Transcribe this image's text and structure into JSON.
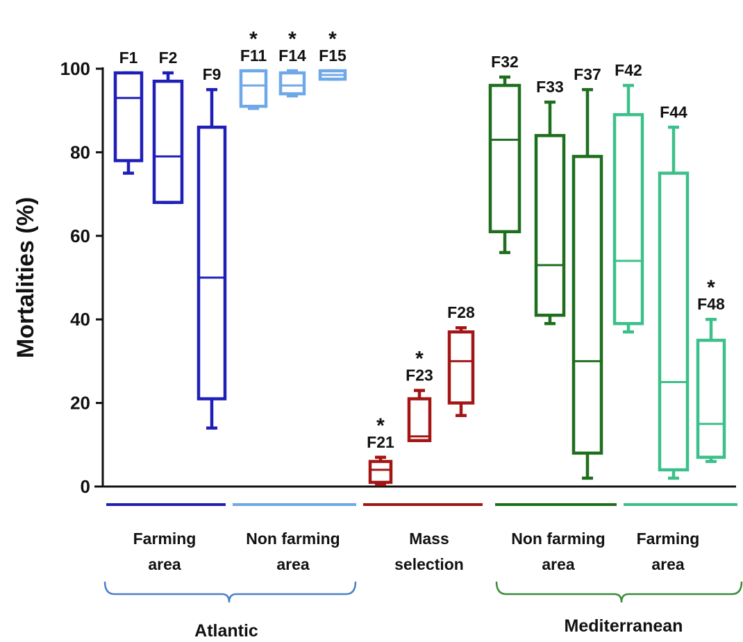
{
  "chart_data": {
    "type": "box",
    "ylabel": "Mortalities (%)",
    "ylim": [
      0,
      100
    ],
    "yticks": [
      0,
      20,
      40,
      60,
      80,
      100
    ],
    "significance_marker": "*",
    "boxes": [
      {
        "label": "F1",
        "group": "atl_farm",
        "min": 75,
        "q1": 78,
        "median": 93,
        "q3": 99,
        "max": 99,
        "significant": false
      },
      {
        "label": "F2",
        "group": "atl_farm",
        "min": 68,
        "q1": 68,
        "median": 79,
        "q3": 97,
        "max": 99,
        "significant": false
      },
      {
        "label": "F9",
        "group": "atl_farm",
        "min": 14,
        "q1": 21,
        "median": 50,
        "q3": 86,
        "max": 95,
        "significant": false
      },
      {
        "label": "F11",
        "group": "atl_nonfarm",
        "min": 90.5,
        "q1": 91,
        "median": 96,
        "q3": 99.5,
        "max": 99.5,
        "significant": true
      },
      {
        "label": "F14",
        "group": "atl_nonfarm",
        "min": 93.5,
        "q1": 94,
        "median": 96,
        "q3": 99,
        "max": 99.5,
        "significant": true
      },
      {
        "label": "F15",
        "group": "atl_nonfarm",
        "min": 97.5,
        "q1": 97.5,
        "median": 98.5,
        "q3": 99.5,
        "max": 99.5,
        "significant": true
      },
      {
        "label": "F21",
        "group": "mass",
        "min": 0.5,
        "q1": 1,
        "median": 4,
        "q3": 6,
        "max": 7,
        "significant": true
      },
      {
        "label": "F23",
        "group": "mass",
        "min": 11,
        "q1": 11,
        "median": 12,
        "q3": 21,
        "max": 23,
        "significant": true
      },
      {
        "label": "F28",
        "group": "mass",
        "min": 17,
        "q1": 20,
        "median": 30,
        "q3": 37,
        "max": 38,
        "significant": false
      },
      {
        "label": "F32",
        "group": "med_nonfarm",
        "min": 56,
        "q1": 61,
        "median": 83,
        "q3": 96,
        "max": 98,
        "significant": false
      },
      {
        "label": "F33",
        "group": "med_nonfarm",
        "min": 39,
        "q1": 41,
        "median": 53,
        "q3": 84,
        "max": 92,
        "significant": false
      },
      {
        "label": "F37",
        "group": "med_nonfarm",
        "min": 2,
        "q1": 8,
        "median": 30,
        "q3": 79,
        "max": 95,
        "significant": false
      },
      {
        "label": "F42",
        "group": "med_farm",
        "min": 37,
        "q1": 39,
        "median": 54,
        "q3": 89,
        "max": 96,
        "significant": false
      },
      {
        "label": "F44",
        "group": "med_farm",
        "min": 2,
        "q1": 4,
        "median": 25,
        "q3": 75,
        "max": 86,
        "significant": false
      },
      {
        "label": "F48",
        "group": "med_farm",
        "min": 6,
        "q1": 7,
        "median": 15,
        "q3": 35,
        "max": 40,
        "significant": true
      }
    ],
    "groups": [
      {
        "id": "atl_farm",
        "label_lines": [
          "Farming",
          "area"
        ],
        "color": "#1f1fb8"
      },
      {
        "id": "atl_nonfarm",
        "label_lines": [
          "Non farming",
          "area"
        ],
        "color": "#6fa8e8"
      },
      {
        "id": "mass",
        "label_lines": [
          "Mass",
          "selection"
        ],
        "color": "#a31515"
      },
      {
        "id": "med_nonfarm",
        "label_lines": [
          "Non farming",
          "area"
        ],
        "color": "#1e6e1e"
      },
      {
        "id": "med_farm",
        "label_lines": [
          "Farming",
          "area"
        ],
        "color": "#3cc08a"
      }
    ],
    "regions": [
      {
        "label": "Atlantic",
        "color": "#4a7fc8"
      },
      {
        "label": "Mediterranean",
        "color": "#3a8a3a"
      }
    ]
  }
}
